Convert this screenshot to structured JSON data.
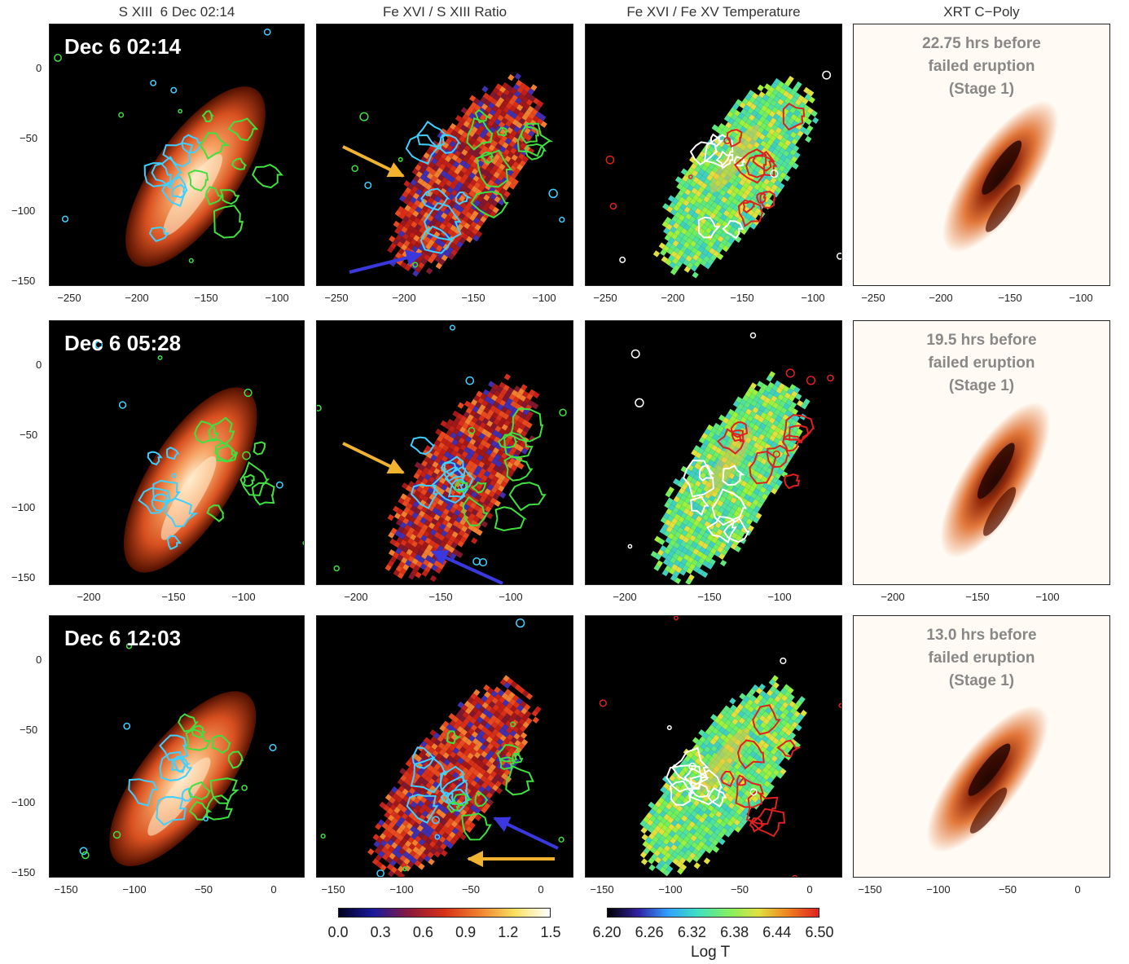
{
  "column_titles": [
    "S XIII  6 Dec 02:14",
    "Fe XVI / S XIII Ratio",
    "Fe XVI / Fe XV Temperature",
    "XRT C−Poly"
  ],
  "row_labels": [
    "Dec 6 02:14",
    "Dec 6 05:28",
    "Dec 6 12:03"
  ],
  "xrt_annotations": [
    [
      "22.75 hrs before",
      "failed eruption",
      "(Stage 1)"
    ],
    [
      "19.5 hrs before",
      "failed eruption",
      "(Stage 1)"
    ],
    [
      "13.0 hrs before",
      "failed eruption",
      "(Stage 1)"
    ]
  ],
  "y_ticks": [
    "0",
    "−50",
    "−100",
    "−150"
  ],
  "x_ticks": [
    [
      "−250",
      "−200",
      "−150",
      "−100"
    ],
    [
      "−200",
      "−150",
      "−100"
    ],
    [
      "−150",
      "−100",
      "−50",
      "0"
    ]
  ],
  "ratio_colorbar": {
    "ticks": [
      "0.0",
      "0.3",
      "0.6",
      "0.9",
      "1.2",
      "1.5"
    ],
    "stops": [
      "#000020",
      "#1a1aa0",
      "#8a1a3a",
      "#d83018",
      "#f08030",
      "#f8e060",
      "#ffffff"
    ]
  },
  "temperature_colorbar": {
    "ticks": [
      "6.20",
      "6.26",
      "6.32",
      "6.38",
      "6.44",
      "6.50"
    ],
    "label": "Log T",
    "stops": [
      "#000000",
      "#3020a0",
      "#30a0ff",
      "#40e0c0",
      "#80f060",
      "#e0e040",
      "#f08020",
      "#e02020"
    ]
  },
  "colors": {
    "contour_cyan": "#40d0ff",
    "contour_green": "#40e040",
    "contour_red": "#e02020",
    "contour_white": "#ffffff",
    "arrow_yellow": "#f2b430",
    "arrow_blue": "#3c38e0"
  }
}
